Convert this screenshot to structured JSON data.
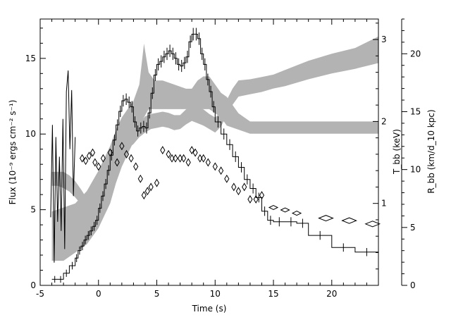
{
  "chart_data": {
    "type": "line",
    "xlabel": "Time (s)",
    "ylabel": "Flux (10⁻⁹ ergs cm⁻² s⁻¹)",
    "y2label": "T_bb (keV)",
    "y3label": "R_bb (km/d_10 kpc)",
    "xlim": [
      -5,
      24
    ],
    "ylim": [
      0,
      17.6
    ],
    "y2lim": [
      0,
      3.25
    ],
    "y3lim": [
      0,
      23
    ],
    "xticks": [
      -5,
      0,
      5,
      10,
      15,
      20
    ],
    "yticks": [
      0,
      5,
      10,
      15
    ],
    "y2ticks": [
      1,
      2,
      3
    ],
    "y3ticks": [
      0,
      5,
      10,
      15,
      20
    ],
    "grid": false,
    "series": [
      {
        "kind": "flux-histogram",
        "color": "#000000",
        "x": [
          -4.0,
          -3.5,
          -3.0,
          -2.5,
          -2.0,
          -1.75,
          -1.5,
          -1.25,
          -1.0,
          -0.75,
          -0.5,
          -0.25,
          0.0,
          0.25,
          0.5,
          0.75,
          1.0,
          1.25,
          1.5,
          1.75,
          2.0,
          2.25,
          2.5,
          2.75,
          3.0,
          3.25,
          3.5,
          3.75,
          4.0,
          4.25,
          4.5,
          4.75,
          5.0,
          5.25,
          5.5,
          5.75,
          6.0,
          6.25,
          6.5,
          6.75,
          7.0,
          7.25,
          7.5,
          7.75,
          8.0,
          8.25,
          8.5,
          8.75,
          9.0,
          9.25,
          9.5,
          9.75,
          10.0,
          10.5,
          11.0,
          11.5,
          12.0,
          12.5,
          13.0,
          13.5,
          14.0,
          14.5,
          15.0,
          16.0,
          17.0,
          18.0,
          20.0,
          22.0,
          24.0
        ],
        "values": [
          0.4,
          0.4,
          0.8,
          1.3,
          1.8,
          2.3,
          2.6,
          3.0,
          3.3,
          3.6,
          3.9,
          4.3,
          5.1,
          5.9,
          6.7,
          7.6,
          8.6,
          9.6,
          10.6,
          11.5,
          12.2,
          12.3,
          12.1,
          11.8,
          10.8,
          10.2,
          10.4,
          10.5,
          10.4,
          11.4,
          12.7,
          13.9,
          14.6,
          14.8,
          15.1,
          15.3,
          15.5,
          15.3,
          15.0,
          14.6,
          14.5,
          14.7,
          15.1,
          16.1,
          16.6,
          16.6,
          16.3,
          15.3,
          14.6,
          13.6,
          12.8,
          11.8,
          10.8,
          10.0,
          9.3,
          8.5,
          7.8,
          7.0,
          6.4,
          5.8,
          4.9,
          4.3,
          4.2,
          4.2,
          4.1,
          3.3,
          2.5,
          2.2,
          2.1
        ],
        "extra_line": {
          "x": [
            -4.1,
            -3.95,
            -3.8,
            -3.65,
            -3.5,
            -3.35,
            -3.2,
            -3.05,
            -2.9,
            -2.75,
            -2.6,
            -2.45,
            -2.3,
            -2.15,
            -2.0
          ],
          "values": [
            4.5,
            10.6,
            1.5,
            9.8,
            4.2,
            8.5,
            3.6,
            11.0,
            2.4,
            12.8,
            14.2,
            9.0,
            12.9,
            5.9,
            9.8
          ]
        }
      },
      {
        "kind": "temperature-band",
        "axis": "y2",
        "color": "#b3b3b3",
        "x": [
          -4.0,
          -3.0,
          -2.0,
          -1.0,
          0.0,
          0.5,
          1.0,
          1.5,
          2.0,
          2.5,
          3.0,
          3.5,
          3.9,
          4.3,
          4.8,
          5.5,
          6.5,
          7.5,
          8.0,
          8.5,
          9.0,
          9.5,
          10.0,
          10.5,
          11.0,
          12.0,
          13.0,
          14.0,
          15.0,
          16.0,
          17.0,
          18.0,
          20.0,
          22.0,
          24.0
        ],
        "upper": [
          0.9,
          0.95,
          1.0,
          1.15,
          1.4,
          1.55,
          1.7,
          1.9,
          2.05,
          2.15,
          2.25,
          2.45,
          2.95,
          2.6,
          2.5,
          2.5,
          2.45,
          2.4,
          2.4,
          2.5,
          2.55,
          2.55,
          2.45,
          2.35,
          2.3,
          2.1,
          2.0,
          2.0,
          2.0,
          2.0,
          2.0,
          2.0,
          2.0,
          2.0,
          2.0
        ],
        "lower": [
          0.3,
          0.3,
          0.4,
          0.5,
          0.7,
          0.85,
          1.0,
          1.25,
          1.45,
          1.6,
          1.75,
          1.95,
          2.05,
          2.15,
          2.15,
          2.15,
          2.15,
          2.15,
          2.15,
          2.15,
          2.15,
          2.15,
          2.1,
          2.05,
          1.95,
          1.9,
          1.85,
          1.85,
          1.85,
          1.85,
          1.85,
          1.85,
          1.85,
          1.85,
          1.85
        ]
      },
      {
        "kind": "radius-band",
        "axis": "y3",
        "color": "#b3b3b3",
        "x": [
          -4.0,
          -3.5,
          -3.0,
          -2.5,
          -2.0,
          -1.5,
          -1.0,
          -0.5,
          0.0,
          0.5,
          1.0,
          1.5,
          2.0,
          2.5,
          3.0,
          3.5,
          4.0,
          4.5,
          5.0,
          5.5,
          6.0,
          6.5,
          7.0,
          7.5,
          8.0,
          8.5,
          9.0,
          9.5,
          10.0,
          10.5,
          11.0,
          11.5,
          12.0,
          13.0,
          14.0,
          15.0,
          16.0,
          17.0,
          18.0,
          20.0,
          22.0,
          24.0
        ],
        "upper": [
          9.8,
          9.8,
          9.8,
          9.5,
          9.0,
          8.3,
          7.5,
          8.2,
          9.0,
          10.0,
          11.0,
          11.5,
          12.2,
          13.0,
          13.5,
          14.0,
          14.6,
          14.8,
          14.9,
          15.0,
          14.9,
          14.7,
          14.7,
          15.2,
          15.5,
          15.4,
          15.2,
          14.8,
          14.5,
          15.0,
          16.0,
          17.0,
          17.7,
          17.8,
          18.0,
          18.2,
          18.6,
          19.0,
          19.4,
          20.0,
          20.5,
          21.5
        ],
        "lower": [
          8.6,
          8.6,
          8.4,
          8.1,
          7.6,
          7.0,
          6.3,
          7.0,
          7.8,
          8.8,
          9.8,
          10.5,
          11.0,
          11.8,
          12.2,
          12.8,
          13.2,
          13.5,
          13.6,
          13.7,
          13.6,
          13.4,
          13.5,
          13.9,
          14.2,
          14.0,
          13.8,
          13.5,
          13.2,
          13.7,
          14.7,
          15.6,
          16.3,
          16.5,
          16.7,
          17.0,
          17.2,
          17.5,
          17.8,
          18.3,
          18.7,
          19.2
        ]
      },
      {
        "kind": "radius-diamonds",
        "axis": "y2",
        "color": "#000000",
        "x": [
          -1.4,
          -1.1,
          -0.8,
          -0.5,
          -0.3,
          0.0,
          0.4,
          1.0,
          1.6,
          2.0,
          2.4,
          2.8,
          3.2,
          3.6,
          3.9,
          4.2,
          4.5,
          5.0,
          5.5,
          6.0,
          6.3,
          6.6,
          7.0,
          7.3,
          7.7,
          8.0,
          8.3,
          8.7,
          9.0,
          9.4,
          10.0,
          10.5,
          11.0,
          11.6,
          12.0,
          12.5,
          13.0,
          13.5,
          14.0,
          15.0,
          16.0,
          17.0,
          19.5,
          21.5,
          23.5
        ],
        "values": [
          1.55,
          1.52,
          1.58,
          1.62,
          1.5,
          1.45,
          1.55,
          1.62,
          1.5,
          1.7,
          1.6,
          1.55,
          1.45,
          1.3,
          1.1,
          1.15,
          1.2,
          1.25,
          1.65,
          1.6,
          1.55,
          1.55,
          1.55,
          1.55,
          1.5,
          1.65,
          1.62,
          1.55,
          1.55,
          1.5,
          1.45,
          1.4,
          1.3,
          1.2,
          1.15,
          1.2,
          1.05,
          1.05,
          1.1,
          0.95,
          0.92,
          0.88,
          0.82,
          0.79,
          0.75
        ]
      }
    ]
  }
}
